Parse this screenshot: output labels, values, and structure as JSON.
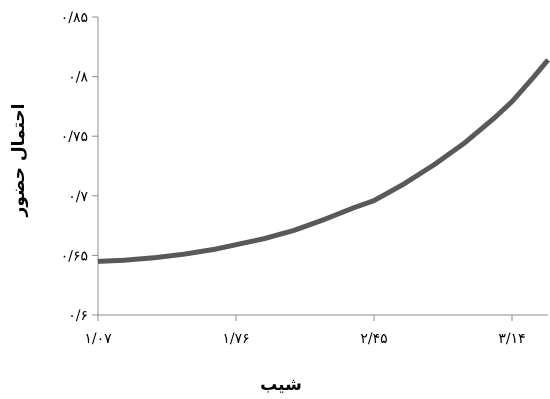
{
  "chart_data": {
    "type": "line",
    "title": "",
    "xlabel": "شیب",
    "ylabel": "احتمال حضور",
    "xlim": [
      1.07,
      3.32
    ],
    "ylim": [
      0.6,
      0.85
    ],
    "x_ticks": [
      1.07,
      1.76,
      2.45,
      3.14
    ],
    "x_tick_labels": [
      "۱/۰۷",
      "۱/۷۶",
      "۲/۴۵",
      "۳/۱۴"
    ],
    "y_ticks": [
      0.6,
      0.65,
      0.7,
      0.75,
      0.8,
      0.85
    ],
    "y_tick_labels": [
      "۰/۶",
      "۰/۶۵",
      "۰/۷",
      "۰/۷۵",
      "۰/۸",
      "۰/۸۵"
    ],
    "grid": false,
    "legend": "none",
    "line_color": "#595959",
    "series": [
      {
        "x": [
          1.07,
          1.2,
          1.35,
          1.5,
          1.65,
          1.76,
          1.9,
          2.05,
          2.2,
          2.35,
          2.45,
          2.6,
          2.75,
          2.9,
          3.05,
          3.14,
          3.25,
          3.32
        ],
        "y": [
          0.645,
          0.646,
          0.648,
          0.651,
          0.655,
          0.659,
          0.664,
          0.671,
          0.68,
          0.69,
          0.696,
          0.71,
          0.726,
          0.744,
          0.765,
          0.779,
          0.8,
          0.814
        ]
      }
    ]
  }
}
